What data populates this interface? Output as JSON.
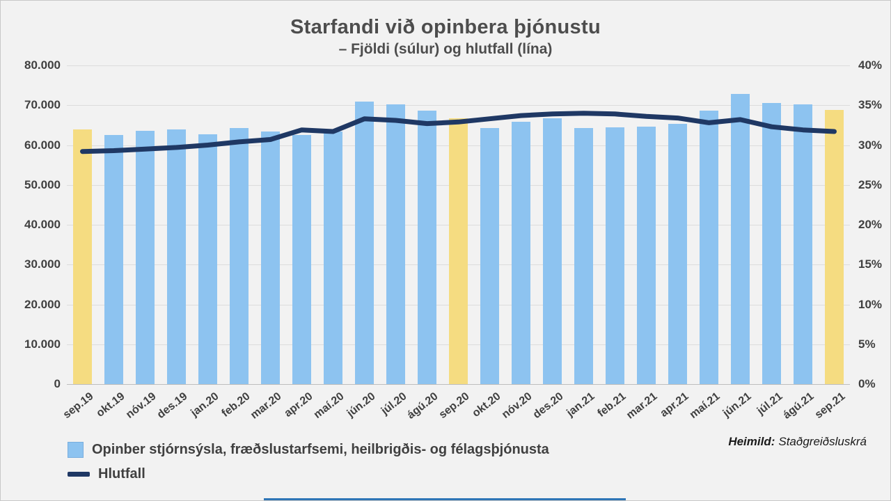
{
  "title": "Starfandi við opinbera þjónustu",
  "subtitle": "– Fjöldi (súlur) og hlutfall (lína)",
  "source": {
    "label": "Heimild:",
    "value": "Staðgreiðsluskrá"
  },
  "legend": [
    {
      "marker": "bar-swatch",
      "label": "Opinber stjórnsýsla, fræðslustarfsemi, heilbrigðis- og félagsþjónusta"
    },
    {
      "marker": "line-dash",
      "label": "Hlutfall"
    }
  ],
  "colors": {
    "bar_blue": "#8dc3f0",
    "bar_highlight_yellow": "#f5dc81",
    "line_navy": "#1f3864",
    "background": "#f2f2f2"
  },
  "chart_data": {
    "type": "combo (bar + line)",
    "title": "Starfandi við opinbera þjónustu",
    "subtitle": "– Fjöldi (súlur) og hlutfall (lína)",
    "grid": true,
    "legend_position": "bottom-left",
    "categories": [
      "sep.19",
      "okt.19",
      "nóv.19",
      "des.19",
      "jan.20",
      "feb.20",
      "mar.20",
      "apr.20",
      "maí.20",
      "jún.20",
      "júl.20",
      "ágú.20",
      "sep.20",
      "okt.20",
      "nóv.20",
      "des.20",
      "jan.21",
      "feb.21",
      "mar.21",
      "apr.21",
      "maí.21",
      "jún.21",
      "júl.21",
      "ágú.21",
      "sep.21"
    ],
    "series": [
      {
        "name": "Opinber stjórnsýsla, fræðslustarfsemi, heilbrigðis- og félagsþjónusta",
        "type": "bar",
        "axis": "left",
        "color": "#8dc3f0",
        "highlight_color": "#f5dc81",
        "highlighted_indices": [
          0,
          12,
          24
        ],
        "values": [
          63900,
          62500,
          63600,
          64000,
          62700,
          64300,
          63400,
          62600,
          63400,
          70900,
          70300,
          68700,
          66800,
          64300,
          65800,
          66700,
          64300,
          64400,
          64700,
          65400,
          68600,
          72800,
          70500,
          70300,
          68800
        ]
      },
      {
        "name": "Hlutfall",
        "type": "line",
        "axis": "right",
        "color": "#1f3864",
        "values_percent": [
          29.2,
          29.3,
          29.5,
          29.7,
          30.0,
          30.4,
          30.7,
          31.9,
          31.7,
          33.3,
          33.1,
          32.7,
          32.9,
          33.3,
          33.7,
          33.9,
          34.0,
          33.9,
          33.6,
          33.4,
          32.8,
          33.2,
          32.3,
          31.9,
          31.7
        ]
      }
    ],
    "left_axis": {
      "min": 0,
      "max": 80000,
      "step": 10000,
      "tick_labels": [
        "0",
        "10.000",
        "20.000",
        "30.000",
        "40.000",
        "50.000",
        "60.000",
        "70.000",
        "80.000"
      ]
    },
    "right_axis": {
      "min": 0,
      "max": 40,
      "step": 5,
      "tick_labels": [
        "0%",
        "5%",
        "10%",
        "15%",
        "20%",
        "25%",
        "30%",
        "35%",
        "40%"
      ]
    }
  }
}
